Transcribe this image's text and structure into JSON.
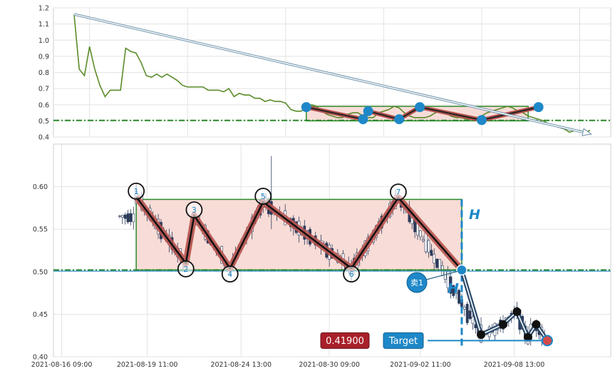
{
  "chart_data": [
    {
      "type": "line",
      "panel": "overview",
      "ylim": [
        0.4,
        1.2
      ],
      "yticks": [
        "0.4",
        "0.5",
        "0.6",
        "0.7",
        "0.8",
        "0.9",
        "1.0",
        "1.1",
        "1.2"
      ],
      "grid": true,
      "series": [
        {
          "color": "#5b8c2a",
          "x": [
            0,
            1,
            2,
            3,
            4,
            5,
            6,
            7,
            8,
            9,
            10,
            11,
            12,
            13,
            14,
            15,
            16,
            17,
            18,
            19,
            20,
            21,
            22,
            23,
            24,
            25,
            26,
            27,
            28,
            29,
            30,
            31,
            32,
            33,
            34,
            35,
            36,
            37,
            38,
            39,
            40,
            41,
            42,
            43,
            44,
            45,
            46,
            47,
            48,
            49,
            50,
            51,
            52,
            53,
            54,
            55,
            56,
            57,
            58,
            59,
            60,
            61,
            62,
            63,
            64,
            65,
            66,
            67,
            68,
            69,
            70,
            71,
            72,
            73,
            74,
            75,
            76,
            77,
            78,
            79,
            80,
            81,
            82,
            83,
            84,
            85,
            86,
            87,
            88,
            89,
            90,
            91,
            92,
            93,
            94,
            95,
            96,
            97,
            98,
            99,
            100
          ],
          "y": [
            1.16,
            0.82,
            0.78,
            0.96,
            0.82,
            0.72,
            0.65,
            0.69,
            0.69,
            0.69,
            0.95,
            0.93,
            0.92,
            0.86,
            0.78,
            0.77,
            0.79,
            0.77,
            0.79,
            0.77,
            0.75,
            0.72,
            0.71,
            0.71,
            0.71,
            0.71,
            0.69,
            0.69,
            0.69,
            0.68,
            0.7,
            0.65,
            0.67,
            0.66,
            0.66,
            0.64,
            0.64,
            0.62,
            0.63,
            0.62,
            0.62,
            0.61,
            0.57,
            0.56,
            0.56,
            0.58,
            0.6,
            0.59,
            0.56,
            0.54,
            0.53,
            0.52,
            0.52,
            0.54,
            0.55,
            0.55,
            0.53,
            0.52,
            0.52,
            0.55,
            0.56,
            0.57,
            0.59,
            0.58,
            0.55,
            0.53,
            0.52,
            0.52,
            0.52,
            0.53,
            0.55,
            0.56,
            0.55,
            0.53,
            0.52,
            0.52,
            0.51,
            0.51,
            0.52,
            0.53,
            0.55,
            0.56,
            0.57,
            0.58,
            0.59,
            0.58,
            0.56,
            0.55,
            0.53,
            0.52,
            0.51,
            0.5,
            0.48,
            0.47,
            0.46,
            0.45,
            0.43,
            0.44,
            0.44,
            0.43,
            0.44
          ]
        }
      ],
      "box": {
        "x0": 45,
        "x1": 88,
        "y0": 0.5,
        "y1": 0.59
      },
      "zigzag_points": [
        [
          45,
          0.585
        ],
        [
          56,
          0.51
        ],
        [
          57,
          0.56
        ],
        [
          63,
          0.51
        ],
        [
          67,
          0.585
        ],
        [
          79,
          0.505
        ],
        [
          90,
          0.585
        ]
      ],
      "hline": 0.503,
      "arrow": {
        "from": [
          0,
          1.16
        ],
        "to": [
          100,
          0.43
        ]
      }
    },
    {
      "type": "candlestick",
      "panel": "main",
      "ylim": [
        0.4,
        0.65
      ],
      "yticks": [
        "0.40",
        "0.45",
        "0.50",
        "0.55",
        "0.60"
      ],
      "xticks": [
        "2021-08-16 09:00",
        "2021-08-19 11:00",
        "2021-08-24 13:00",
        "2021-08-30 09:00",
        "2021-09-02 11:00",
        "2021-09-08 13:00"
      ],
      "grid": true,
      "pattern_box": {
        "x0": 8,
        "x1": 126,
        "y0": 0.502,
        "y1": 0.585
      },
      "zigzag": [
        {
          "label": "1",
          "x": 8,
          "y": 0.588
        },
        {
          "label": "2",
          "x": 26,
          "y": 0.51
        },
        {
          "label": "3",
          "x": 29,
          "y": 0.566
        },
        {
          "label": "4",
          "x": 42,
          "y": 0.504
        },
        {
          "label": "5",
          "x": 54,
          "y": 0.582
        },
        {
          "label": "6",
          "x": 86,
          "y": 0.504
        },
        {
          "label": "7",
          "x": 103,
          "y": 0.587
        }
      ],
      "breakout": {
        "x": 126,
        "y": 0.502
      },
      "target_path": [
        [
          126,
          0.502
        ],
        [
          133,
          0.426
        ],
        [
          141,
          0.438
        ],
        [
          146,
          0.453
        ],
        [
          150,
          0.423
        ],
        [
          153,
          0.438
        ],
        [
          157,
          0.419
        ]
      ],
      "h_label": "H",
      "sell_label": "卖1",
      "target_label": "Target",
      "target_price": "0.41900",
      "target_value": 0.419,
      "hline": 0.502,
      "colors": {
        "box_fill": "#f8dcd7",
        "box_edge": "#2a8a2a",
        "zigzag_outer": "#b85450",
        "bull": "#ffffff",
        "bear": "#2b3a5a",
        "accent": "#1e88c8",
        "price_badge": "#a8202a"
      }
    }
  ]
}
